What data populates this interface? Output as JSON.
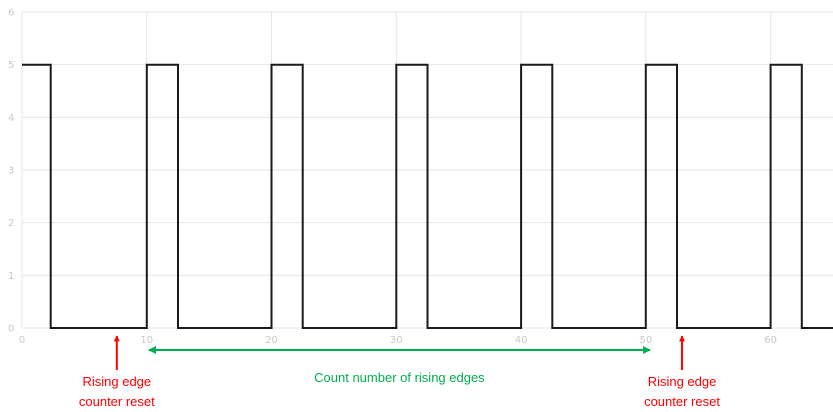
{
  "chart_data": {
    "type": "line",
    "title": "",
    "xlabel": "",
    "ylabel": "",
    "xlim": [
      0,
      65
    ],
    "ylim": [
      0,
      6
    ],
    "grid": true,
    "x_ticks": [
      0,
      10,
      20,
      30,
      40,
      50,
      60
    ],
    "y_ticks": [
      0,
      1,
      2,
      3,
      4,
      5,
      6
    ],
    "series": [
      {
        "step": true,
        "color": "#1a1a1a",
        "x": [
          0,
          2.3,
          2.3,
          10,
          10,
          12.5,
          12.5,
          20,
          20,
          22.5,
          22.5,
          30,
          30,
          32.5,
          32.5,
          40,
          40,
          42.5,
          42.5,
          50,
          50,
          52.5,
          52.5,
          60,
          60,
          62.5,
          62.5,
          65
        ],
        "y": [
          5,
          5,
          0,
          0,
          5,
          5,
          0,
          0,
          5,
          5,
          0,
          0,
          5,
          5,
          0,
          0,
          5,
          5,
          0,
          0,
          5,
          5,
          0,
          0,
          5,
          5,
          0,
          0
        ]
      }
    ],
    "annotations": [
      {
        "id": "reset-left",
        "line1": "Rising edge",
        "line2": "counter reset",
        "color": "#ff0000",
        "x": 7.6
      },
      {
        "id": "count-edges",
        "text": "Count number of rising edges",
        "color": "#00b050",
        "x_from": 10,
        "x_to": 50.5
      },
      {
        "id": "reset-right",
        "line1": "Rising edge",
        "line2": "counter reset",
        "color": "#ff0000",
        "x": 52.9
      }
    ]
  }
}
